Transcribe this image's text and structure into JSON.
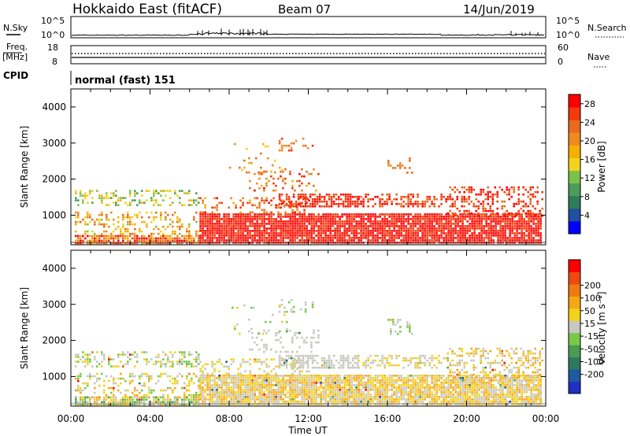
{
  "header": {
    "title": "Hokkaido East (fitACF)",
    "beam": "Beam 07",
    "date": "14/Jun/2019"
  },
  "status_panels": {
    "noise_left_label": "N.Sky",
    "noise_right_label": "N.Search",
    "noise_ticks": [
      "10^5",
      "10^0"
    ],
    "freq_label_line1": "Freq.",
    "freq_label_line2": "[MHz]",
    "freq_ticks": [
      "18",
      "8"
    ],
    "nave_label": "Nave",
    "nave_ticks": [
      "60",
      "0"
    ],
    "cpid_label": "CPID",
    "cpid_value": "normal (fast) 151"
  },
  "colors": {
    "power_scale": [
      "#0000ff",
      "#1f4fa0",
      "#2e7d5a",
      "#4d9c5a",
      "#7cc24a",
      "#f2d31c",
      "#f5b000",
      "#f08a1e",
      "#ea6a1e",
      "#f23a0c",
      "#ff0000"
    ],
    "velocity_scale": [
      "#2030c0",
      "#1e5aa0",
      "#2d7a62",
      "#4a9c52",
      "#79c848",
      "#c8c8c0",
      "#f2d21c",
      "#f5a812",
      "#ee7a12",
      "#ee4a10",
      "#ff0000"
    ]
  },
  "chart_data": [
    {
      "type": "heatmap",
      "name": "power",
      "ylabel": "Slant Range [km]",
      "xlabel": "",
      "y_ticks": [
        "1000",
        "2000",
        "3000",
        "4000"
      ],
      "y_tick_values": [
        1000,
        2000,
        3000,
        4000
      ],
      "ylim": [
        180,
        4500
      ],
      "x_ticks": [
        "00:00",
        "04:00",
        "08:00",
        "12:00",
        "16:00",
        "20:00",
        "00:00"
      ],
      "xlim_hours": [
        0,
        24
      ],
      "colorbar_label": "Power [dB]",
      "colorbar_ticks": [
        "4",
        "8",
        "12",
        "16",
        "20",
        "24",
        "28"
      ],
      "colorbar_range": [
        0,
        30
      ]
    },
    {
      "type": "heatmap",
      "name": "velocity",
      "ylabel": "Slant Range [km]",
      "xlabel": "Time UT",
      "y_ticks": [
        "1000",
        "2000",
        "3000",
        "4000"
      ],
      "y_tick_values": [
        1000,
        2000,
        3000,
        4000
      ],
      "ylim": [
        180,
        4500
      ],
      "x_ticks": [
        "00:00",
        "04:00",
        "08:00",
        "12:00",
        "16:00",
        "20:00",
        "00:00"
      ],
      "xlim_hours": [
        0,
        24
      ],
      "colorbar_label": "Velocity [m s⁻¹]",
      "colorbar_ticks": [
        "-200",
        "-100",
        "-50",
        "-15",
        "15",
        "50",
        "100",
        "200"
      ],
      "colorbar_values": [
        -200,
        -100,
        -50,
        -15,
        15,
        50,
        100,
        200
      ]
    }
  ]
}
